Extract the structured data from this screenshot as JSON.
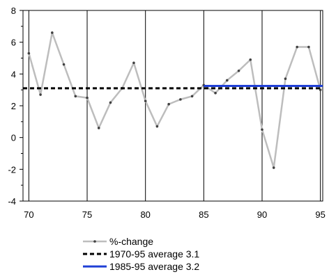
{
  "chart_data": {
    "type": "line",
    "title": "",
    "xlabel": "",
    "ylabel": "",
    "xlim": [
      69.5,
      95.2
    ],
    "ylim": [
      -4,
      8
    ],
    "x_ticks": [
      70,
      75,
      80,
      85,
      90,
      95
    ],
    "y_ticks": [
      -4,
      -2,
      0,
      2,
      4,
      6,
      8
    ],
    "x_tick_labels": [
      "70",
      "75",
      "80",
      "85",
      "90",
      "95"
    ],
    "y_tick_labels": [
      "-4",
      "-2",
      "0",
      "2",
      "4",
      "6",
      "8"
    ],
    "grid": "vertical lines at major x ticks, frame on all sides",
    "legend_position": "bottom",
    "series": [
      {
        "name": "%-change",
        "style": "line-with-markers",
        "color": "#bdbdbd",
        "marker_color": "#404040",
        "x": [
          70,
          71,
          72,
          73,
          74,
          75,
          76,
          77,
          78,
          79,
          80,
          81,
          82,
          83,
          84,
          85,
          86,
          87,
          88,
          89,
          90,
          91,
          92,
          93,
          94,
          95
        ],
        "values": [
          5.3,
          2.7,
          6.6,
          4.6,
          2.6,
          2.5,
          0.6,
          2.2,
          3.1,
          4.7,
          2.3,
          0.7,
          2.1,
          2.4,
          2.6,
          3.3,
          2.8,
          3.6,
          4.2,
          4.9,
          0.5,
          -1.9,
          3.7,
          5.7,
          5.7,
          3.0
        ]
      },
      {
        "name": "1970-95 average 3.1",
        "style": "dashed",
        "color": "#000000",
        "x": [
          69.5,
          95.2
        ],
        "values": [
          3.1,
          3.1
        ]
      },
      {
        "name": "1985-95 average 3.2",
        "style": "solid",
        "color": "#1f3fd6",
        "x": [
          85,
          95.2
        ],
        "values": [
          3.25,
          3.25
        ]
      }
    ]
  }
}
